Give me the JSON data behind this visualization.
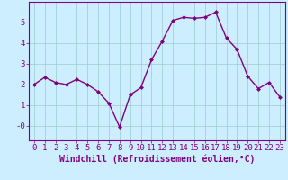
{
  "x": [
    0,
    1,
    2,
    3,
    4,
    5,
    6,
    7,
    8,
    9,
    10,
    11,
    12,
    13,
    14,
    15,
    16,
    17,
    18,
    19,
    20,
    21,
    22,
    23
  ],
  "y": [
    2.0,
    2.35,
    2.1,
    2.0,
    2.25,
    2.0,
    1.65,
    1.1,
    -0.05,
    1.5,
    1.85,
    3.2,
    4.1,
    5.1,
    5.25,
    5.2,
    5.25,
    5.5,
    4.25,
    3.7,
    2.4,
    1.8,
    2.1,
    1.4
  ],
  "line_color": "#800080",
  "marker": "D",
  "marker_size": 2,
  "bg_color": "#cceeff",
  "grid_color": "#99cccc",
  "xlabel": "Windchill (Refroidissement éolien,°C)",
  "ylabel": "",
  "ylim": [
    -0.7,
    6.0
  ],
  "xlim": [
    -0.5,
    23.5
  ],
  "yticks": [
    0,
    1,
    2,
    3,
    4,
    5
  ],
  "ytick_labels": [
    "-0",
    "1",
    "2",
    "3",
    "4",
    "5"
  ],
  "xticks": [
    0,
    1,
    2,
    3,
    4,
    5,
    6,
    7,
    8,
    9,
    10,
    11,
    12,
    13,
    14,
    15,
    16,
    17,
    18,
    19,
    20,
    21,
    22,
    23
  ],
  "axis_color": "#800080",
  "font_size": 6.5,
  "xlabel_fontsize": 7,
  "linewidth": 1.0
}
